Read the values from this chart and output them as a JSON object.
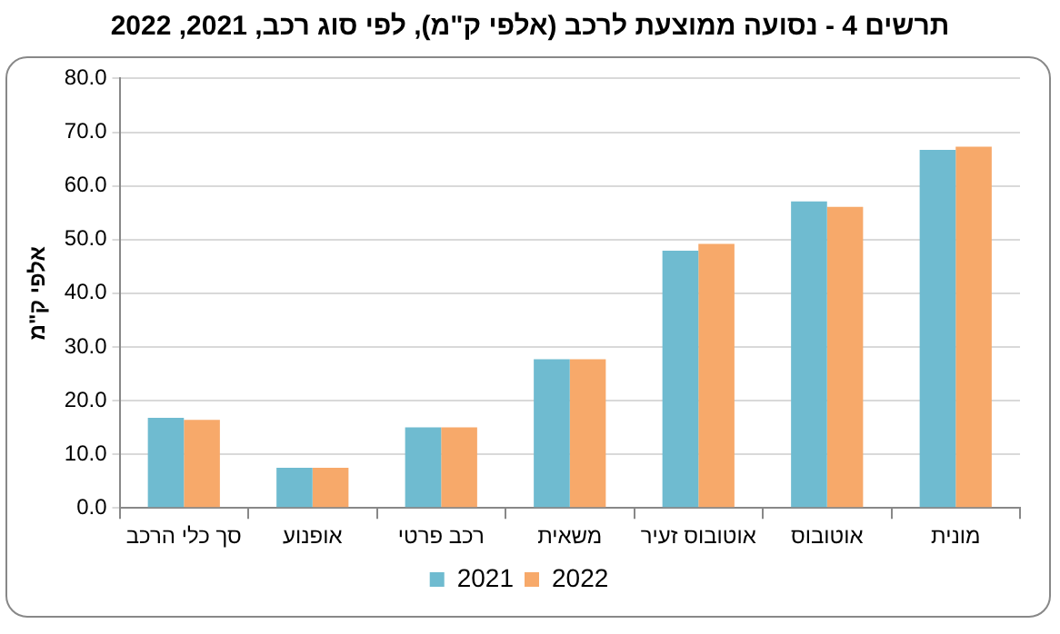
{
  "chart_data": {
    "type": "bar",
    "title": "תרשים 4 - נסועה ממוצעת לרכב (אלפי ק\"מ), לפי סוג רכב, 2021, 2022",
    "ylabel": "אלפי ק\"מ",
    "categories": [
      "סך כלי הרכב",
      "אופנוע",
      "רכב פרטי",
      "משאית",
      "אוטובוס זעיר",
      "אוטובוס",
      "מונית"
    ],
    "series": [
      {
        "name": "2021",
        "color": "#6fbbd0",
        "values": [
          16.8,
          7.5,
          15.0,
          27.7,
          47.9,
          57.1,
          66.7
        ]
      },
      {
        "name": "2022",
        "color": "#f7a96a",
        "values": [
          16.4,
          7.5,
          15.0,
          27.7,
          49.2,
          56.1,
          67.3
        ]
      }
    ],
    "ylim": [
      0,
      80
    ],
    "yticks": [
      {
        "value": 0,
        "label": "0.0"
      },
      {
        "value": 10,
        "label": "10.0"
      },
      {
        "value": 20,
        "label": "20.0"
      },
      {
        "value": 30,
        "label": "30.0"
      },
      {
        "value": 40,
        "label": "40.0"
      },
      {
        "value": 50,
        "label": "50.0"
      },
      {
        "value": 60,
        "label": "60.0"
      },
      {
        "value": 70,
        "label": "70.0"
      },
      {
        "value": 80,
        "label": "80.0"
      }
    ],
    "grid": "y",
    "legend": "bottom"
  }
}
